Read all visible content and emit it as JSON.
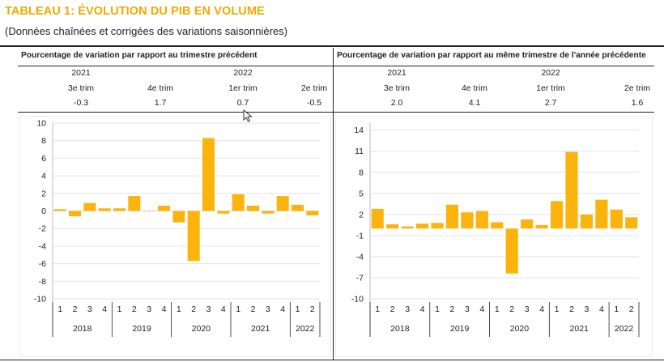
{
  "header": {
    "title": "TABLEAU 1: ÉVOLUTION DU PIB EN VOLUME",
    "subtitle": "(Données chaînées et corrigées des variations saisonnières)"
  },
  "left_panel": {
    "heading": "Pourcentage de variation par rapport au trimestre précédent",
    "summary": {
      "years": [
        "2021",
        "2022"
      ],
      "quarters": [
        "3e trim",
        "4e trim",
        "1er trim",
        "2e trim"
      ],
      "values": [
        "-0.3",
        "1.7",
        "0.7",
        "-0.5"
      ]
    }
  },
  "right_panel": {
    "heading": "Pourcentage de variation par rapport au même trimestre de l'année précédente",
    "summary": {
      "years": [
        "2021",
        "2022"
      ],
      "quarters": [
        "3e trim",
        "4e trim",
        "1er trim",
        "2e trim"
      ],
      "values": [
        "2.0",
        "4.1",
        "2.7",
        "1.6"
      ]
    }
  },
  "colors": {
    "accent": "#f2a900",
    "bar": "#fbb40e",
    "text": "#222222"
  },
  "chart_data": [
    {
      "type": "bar",
      "title": "Pourcentage de variation par rapport au trimestre précédent",
      "categories": [
        "1",
        "2",
        "3",
        "4",
        "1",
        "2",
        "3",
        "4",
        "1",
        "2",
        "3",
        "4",
        "1",
        "2",
        "3",
        "4",
        "1",
        "2"
      ],
      "groups": [
        {
          "label": "2018",
          "count": 4
        },
        {
          "label": "2019",
          "count": 4
        },
        {
          "label": "2020",
          "count": 4
        },
        {
          "label": "2021",
          "count": 4
        },
        {
          "label": "2022",
          "count": 2
        }
      ],
      "values": [
        0.2,
        -0.6,
        0.9,
        0.3,
        0.3,
        1.7,
        0.0,
        0.6,
        -1.3,
        -5.7,
        8.3,
        -0.3,
        1.9,
        0.6,
        -0.3,
        1.7,
        0.7,
        -0.5
      ],
      "ylim": [
        -10,
        10
      ],
      "yticks": [
        10,
        8,
        6,
        4,
        2,
        0,
        -2,
        -4,
        -6,
        -8,
        -10
      ],
      "ytick_labels": [
        "10",
        "8",
        "6",
        "4",
        "2",
        "0",
        "-2",
        "-4",
        "-6",
        "-8",
        "-10"
      ],
      "grid": true
    },
    {
      "type": "bar",
      "title": "Pourcentage de variation par rapport au même trimestre de l'année précédente",
      "categories": [
        "1",
        "2",
        "3",
        "4",
        "1",
        "2",
        "3",
        "4",
        "1",
        "2",
        "3",
        "4",
        "1",
        "2",
        "3",
        "4",
        "1",
        "2"
      ],
      "groups": [
        {
          "label": "2018",
          "count": 4
        },
        {
          "label": "2019",
          "count": 4
        },
        {
          "label": "2020",
          "count": 4
        },
        {
          "label": "2021",
          "count": 4
        },
        {
          "label": "2022",
          "count": 2
        }
      ],
      "values": [
        2.8,
        0.6,
        0.3,
        0.7,
        0.8,
        3.4,
        2.3,
        2.5,
        0.9,
        -6.4,
        1.3,
        0.5,
        3.9,
        10.9,
        2.0,
        4.1,
        2.7,
        1.6
      ],
      "ylim": [
        -10,
        15
      ],
      "yticks": [
        14,
        11,
        8,
        5,
        2,
        -1,
        -4,
        -7,
        -10
      ],
      "ytick_labels": [
        "14",
        "11",
        "8",
        "5",
        "2",
        "-1",
        "-4",
        "-7",
        "-10"
      ],
      "grid": true
    }
  ]
}
